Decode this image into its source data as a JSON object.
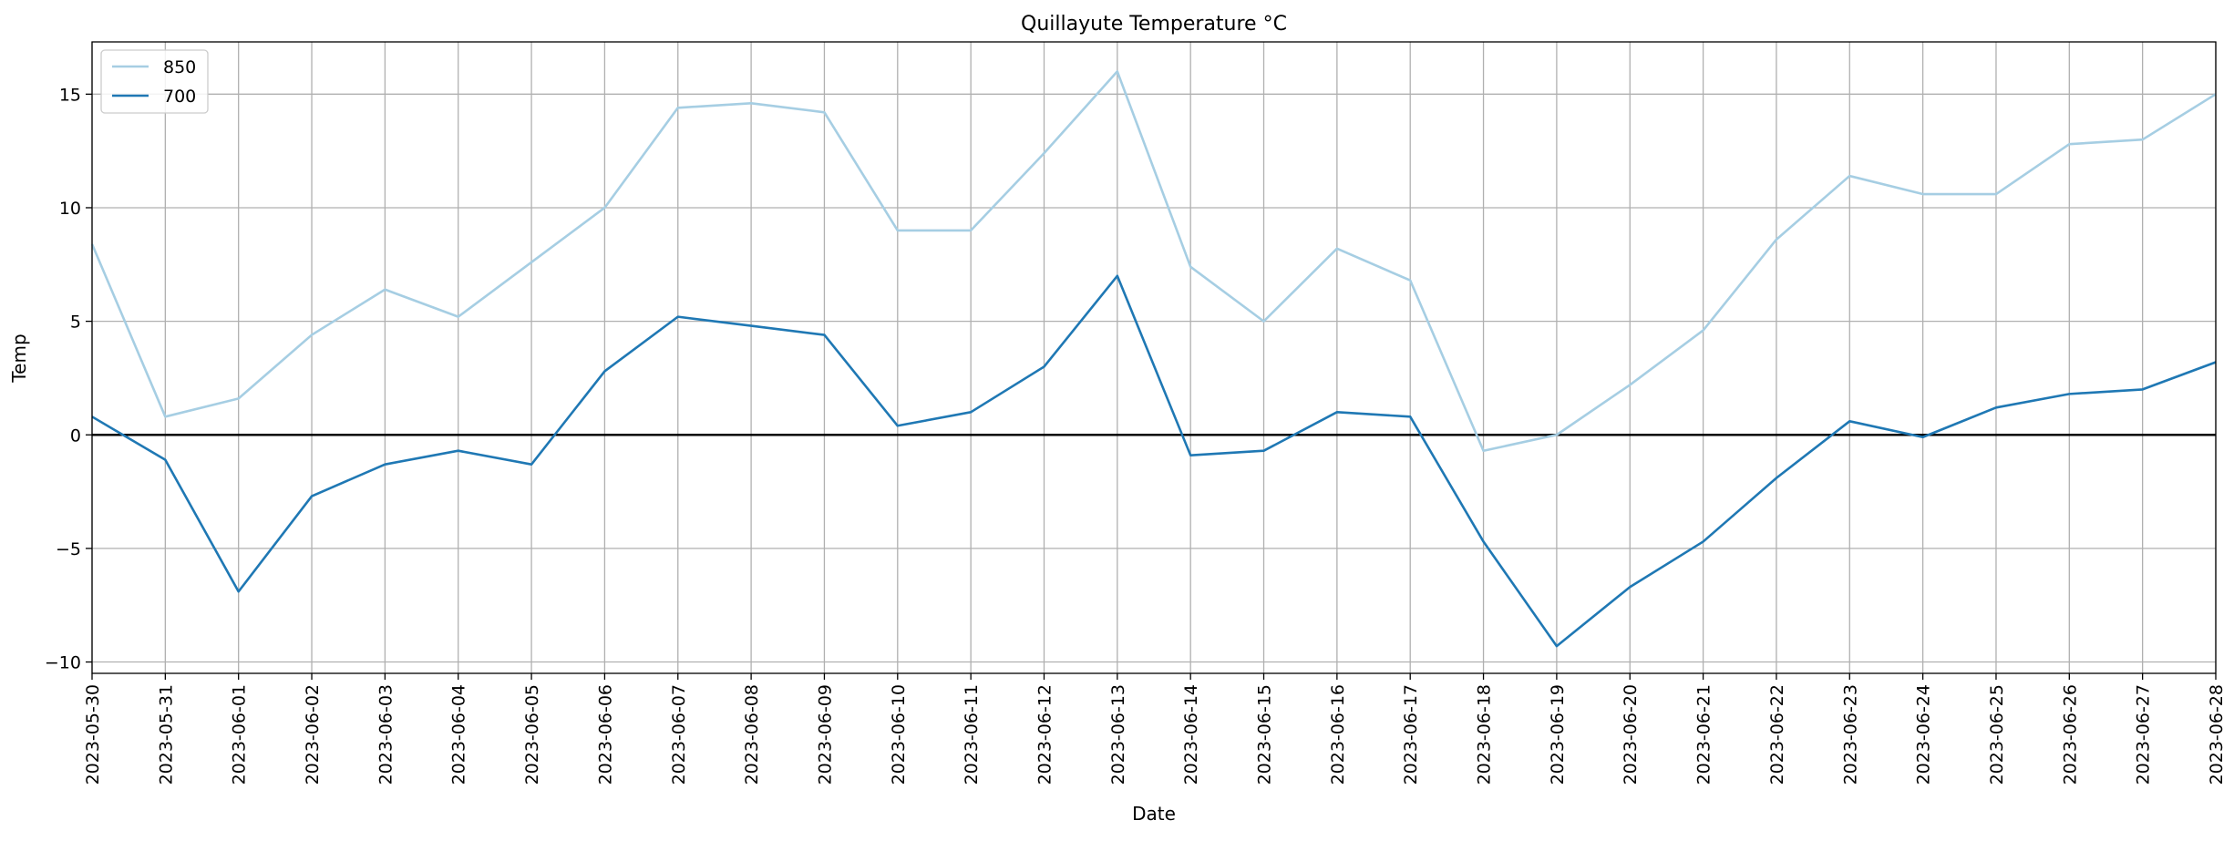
{
  "chart_data": {
    "type": "line",
    "title": "Quillayute Temperature °C",
    "xlabel": "Date",
    "ylabel": "Temp",
    "ylim": [
      -10.5,
      17.3
    ],
    "yticks": [
      -10,
      -5,
      0,
      5,
      10,
      15
    ],
    "grid": true,
    "zero_line": 0,
    "legend_position": "top-left",
    "x": [
      "2023-05-30",
      "2023-05-31",
      "2023-06-01",
      "2023-06-02",
      "2023-06-03",
      "2023-06-04",
      "2023-06-05",
      "2023-06-06",
      "2023-06-07",
      "2023-06-08",
      "2023-06-09",
      "2023-06-10",
      "2023-06-11",
      "2023-06-12",
      "2023-06-13",
      "2023-06-14",
      "2023-06-15",
      "2023-06-16",
      "2023-06-17",
      "2023-06-18",
      "2023-06-19",
      "2023-06-20",
      "2023-06-21",
      "2023-06-22",
      "2023-06-23",
      "2023-06-24",
      "2023-06-25",
      "2023-06-26",
      "2023-06-27",
      "2023-06-28"
    ],
    "series": [
      {
        "name": "850",
        "color": "#a6cee3",
        "values": [
          8.4,
          0.8,
          1.6,
          4.4,
          6.4,
          5.2,
          7.6,
          10.0,
          14.4,
          14.6,
          14.2,
          9.0,
          9.0,
          12.4,
          16.0,
          7.4,
          5.0,
          8.2,
          6.8,
          -0.7,
          0.0,
          2.2,
          4.6,
          8.6,
          11.4,
          10.6,
          10.6,
          12.8,
          13.0,
          15.0
        ]
      },
      {
        "name": "700",
        "color": "#1f78b4",
        "values": [
          0.8,
          -1.1,
          -6.9,
          -2.7,
          -1.3,
          -0.7,
          -1.3,
          2.8,
          5.2,
          4.8,
          4.4,
          0.4,
          1.0,
          3.0,
          7.0,
          -0.9,
          -0.7,
          1.0,
          0.8,
          -4.7,
          -9.3,
          -6.7,
          -4.7,
          -1.9,
          0.6,
          -0.1,
          1.2,
          1.8,
          2.0,
          3.2
        ]
      }
    ]
  }
}
